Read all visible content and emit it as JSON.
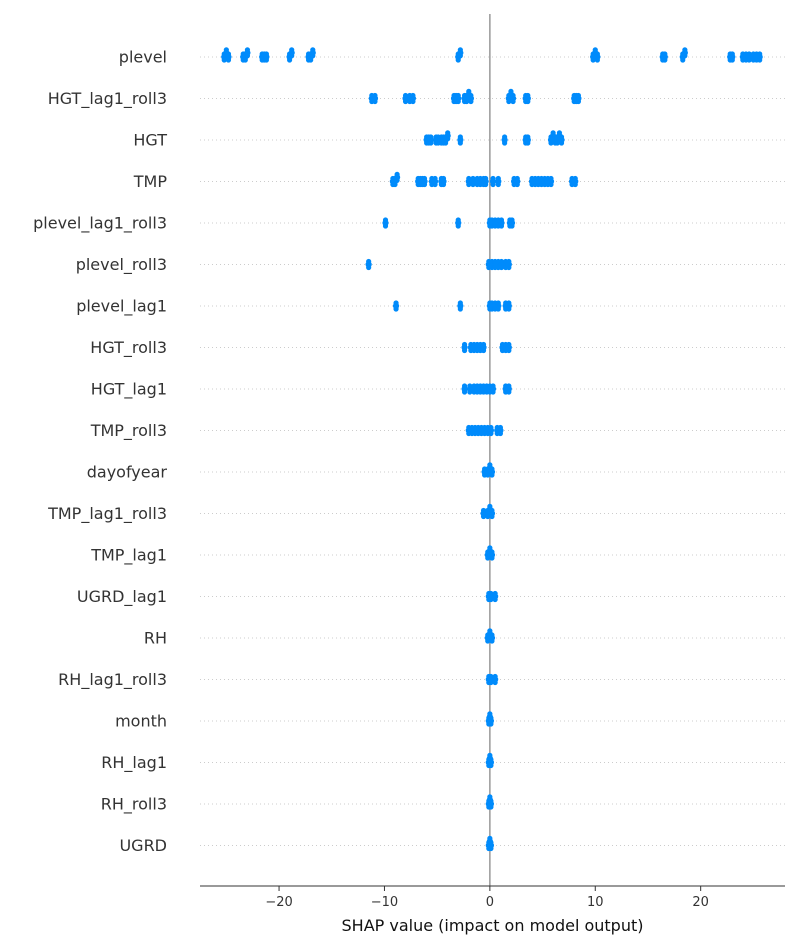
{
  "chart_data": {
    "type": "scatter",
    "subtype": "shap-beeswarm",
    "title": "",
    "xlabel": "SHAP value (impact on model output)",
    "ylabel": "",
    "xlim": [
      -27.5,
      28
    ],
    "xticks": [
      -20,
      -10,
      0,
      10,
      20
    ],
    "xtick_labels": [
      "−20",
      "−10",
      "0",
      "10",
      "20"
    ],
    "grid": false,
    "legend": "none",
    "zero_line": true,
    "colors": {
      "point": "#008bfb",
      "zero_line": "#999999",
      "axis": "#333333",
      "guide": "#cccccc"
    },
    "features": [
      {
        "name": "plevel",
        "values": [
          -25.2,
          -25,
          -24.8,
          -23.4,
          -23.2,
          -23,
          -21.6,
          -21.4,
          -21.2,
          -19,
          -18.8,
          -17.2,
          -17,
          -16.8,
          -3,
          -2.8,
          9.8,
          10,
          10.2,
          16.4,
          16.6,
          18.3,
          18.5,
          22.8,
          23,
          24,
          24.3,
          24.6,
          25,
          25.3,
          25.6
        ]
      },
      {
        "name": "HGT_lag1_roll3",
        "values": [
          -11.2,
          -10.9,
          -8,
          -7.6,
          -7.3,
          -3.4,
          -3.2,
          -3,
          -2.4,
          -2.2,
          -2,
          -1.8,
          1.8,
          2,
          2.2,
          3.4,
          3.6,
          8,
          8.2,
          8.4
        ]
      },
      {
        "name": "HGT",
        "values": [
          -6,
          -5.8,
          -5.6,
          -5.1,
          -4.9,
          -4.6,
          -4.4,
          -4.2,
          -4,
          -2.8,
          1.4,
          3.4,
          3.6,
          5.8,
          6,
          6.2,
          6.4,
          6.6,
          6.8
        ]
      },
      {
        "name": "TMP",
        "values": [
          -9.2,
          -9,
          -8.8,
          -6.8,
          -6.6,
          -6.4,
          -6.2,
          -5.5,
          -5.2,
          -4.6,
          -4.4,
          -2,
          -1.6,
          -1.2,
          -0.9,
          -0.6,
          -0.4,
          0.3,
          0.8,
          2.3,
          2.6,
          4,
          4.3,
          4.6,
          4.9,
          5.2,
          5.5,
          5.8,
          7.8,
          8.1
        ]
      },
      {
        "name": "plevel_lag1_roll3",
        "values": [
          -9.9,
          -3,
          0,
          0.2,
          0.5,
          0.8,
          1.1,
          1.9,
          2.1
        ]
      },
      {
        "name": "plevel_roll3",
        "values": [
          -11.5,
          -0.1,
          0.2,
          0.5,
          0.8,
          1.1,
          1.5,
          1.8
        ]
      },
      {
        "name": "plevel_lag1",
        "values": [
          -8.9,
          -2.8,
          0,
          0.2,
          0.5,
          0.8,
          1.5,
          1.8
        ]
      },
      {
        "name": "HGT_roll3",
        "values": [
          -2.4,
          -1.8,
          -1.5,
          -1.2,
          -0.9,
          -0.6,
          1.2,
          1.5,
          1.8
        ]
      },
      {
        "name": "HGT_lag1",
        "values": [
          -2.4,
          -1.9,
          -1.5,
          -1.2,
          -0.9,
          -0.6,
          -0.3,
          0,
          0.3,
          1.5,
          1.8
        ]
      },
      {
        "name": "TMP_roll3",
        "values": [
          -2,
          -1.7,
          -1.4,
          -1.1,
          -0.8,
          -0.5,
          -0.2,
          0.1,
          0.7,
          1
        ]
      },
      {
        "name": "dayofyear",
        "values": [
          -0.5,
          -0.2,
          0,
          0.2
        ]
      },
      {
        "name": "TMP_lag1_roll3",
        "values": [
          -0.6,
          -0.2,
          0,
          0.2
        ]
      },
      {
        "name": "TMP_lag1",
        "values": [
          -0.2,
          0,
          0.2
        ]
      },
      {
        "name": "UGRD_lag1",
        "values": [
          -0.1,
          0.1,
          0.5
        ]
      },
      {
        "name": "RH",
        "values": [
          -0.2,
          0,
          0.2
        ]
      },
      {
        "name": "RH_lag1_roll3",
        "values": [
          -0.1,
          0.1,
          0.5
        ]
      },
      {
        "name": "month",
        "values": [
          -0.1,
          0,
          0.1
        ]
      },
      {
        "name": "RH_lag1",
        "values": [
          -0.1,
          0,
          0.1
        ]
      },
      {
        "name": "RH_roll3",
        "values": [
          -0.1,
          0,
          0.1
        ]
      },
      {
        "name": "UGRD",
        "values": [
          -0.1,
          0,
          0.1
        ]
      }
    ]
  }
}
